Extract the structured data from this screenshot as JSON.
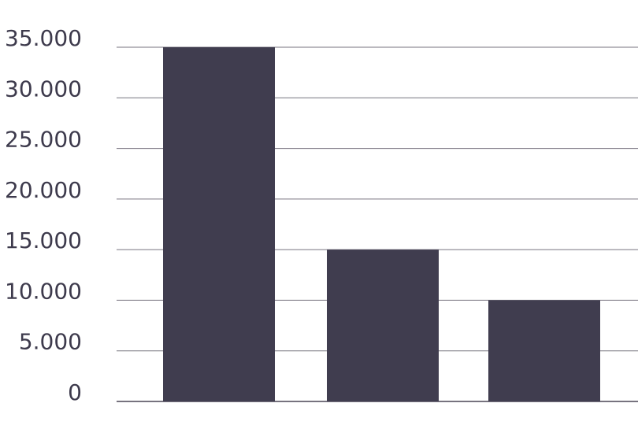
{
  "chart_data": {
    "type": "bar",
    "categories": [
      "",
      "",
      ""
    ],
    "values": [
      35000,
      15000,
      10000
    ],
    "yticks": [
      "0",
      "5.000",
      "10.000",
      "15.000",
      "20.000",
      "25.000",
      "30.000",
      "35.000"
    ],
    "ylim": [
      0,
      35000
    ],
    "grid": true,
    "bar_color": "#403d4f",
    "grid_color": "#77737f",
    "tick_color": "#3d3a4c"
  }
}
